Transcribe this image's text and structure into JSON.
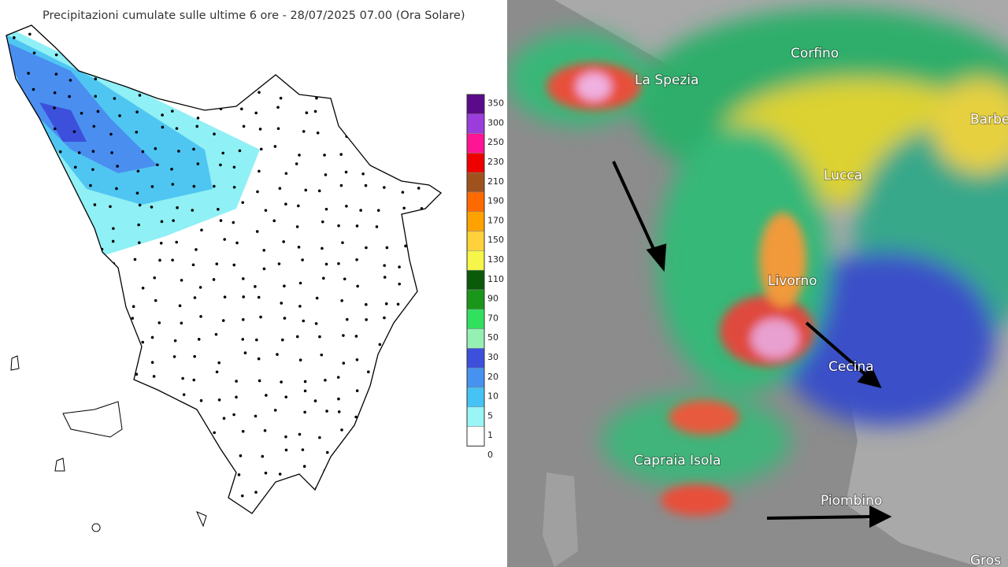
{
  "precip_map": {
    "title": "Precipitazioni cumulate sulle ultime 6 ore - 28/07/2025 07.00 (Ora Solare)",
    "legend": {
      "labels": [
        "350",
        "300",
        "250",
        "230",
        "210",
        "190",
        "170",
        "150",
        "130",
        "110",
        "90",
        "70",
        "50",
        "30",
        "20",
        "10",
        "5",
        "1",
        "0"
      ],
      "colors": [
        "#5c0a8c",
        "#9b3ddc",
        "#ff1493",
        "#ee0000",
        "#a0521e",
        "#ff6a00",
        "#ffa200",
        "#ffd23c",
        "#f5f54a",
        "#0a5a0a",
        "#1a961a",
        "#32e060",
        "#96f0b4",
        "#3c50dc",
        "#4692f0",
        "#46c3f5",
        "#9af5f5",
        "#ffffff"
      ]
    }
  },
  "radar_map": {
    "places": [
      "La Spezia",
      "Corfino",
      "Barbe",
      "Lucca",
      "Livorno",
      "Cecina",
      "Capraia Isola",
      "Piombino",
      "Gros"
    ]
  }
}
